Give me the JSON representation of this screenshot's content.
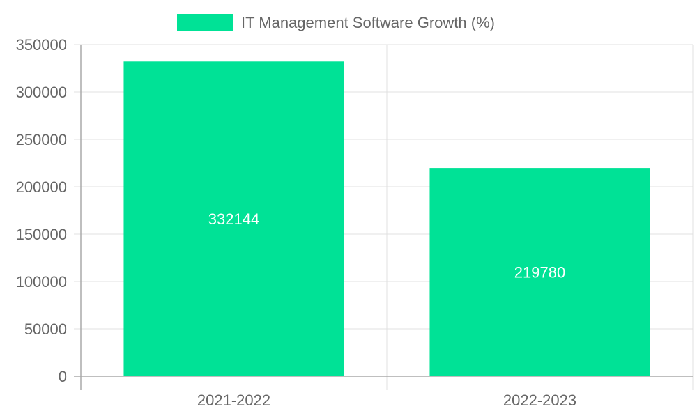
{
  "chart_data": {
    "type": "bar",
    "categories": [
      "2021-2022",
      "2022-2023"
    ],
    "series": [
      {
        "name": "IT Management Software Growth (%)",
        "values": [
          332144,
          219780
        ],
        "color": "#00e296"
      }
    ],
    "data_labels": [
      "332144",
      "219780"
    ],
    "ylim": [
      0,
      350000
    ],
    "yticks": [
      0,
      50000,
      100000,
      150000,
      200000,
      250000,
      300000,
      350000
    ],
    "ytick_labels": [
      "0",
      "50000",
      "100000",
      "150000",
      "200000",
      "250000",
      "300000",
      "350000"
    ],
    "grid": true,
    "legend_position": "top-center",
    "grid_color": "#e0e0e0",
    "text_color": "#666666"
  }
}
